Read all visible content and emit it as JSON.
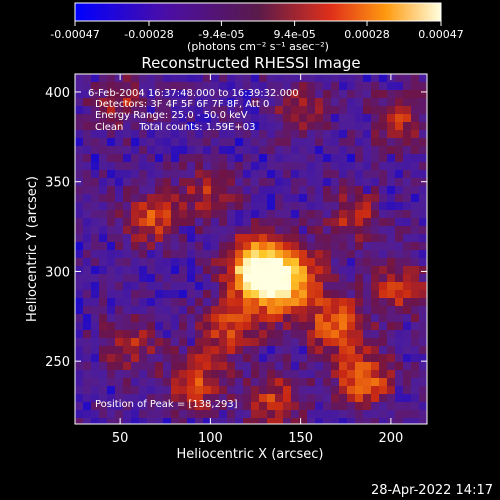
{
  "chart_data": {
    "type": "heatmap",
    "title": "Reconstructed RHESSI Image",
    "xlabel": "Heliocentric X (arcsec)",
    "ylabel": "Heliocentric Y (arcsec)",
    "xlim": [
      25,
      220
    ],
    "ylim": [
      215,
      410
    ],
    "xticks": [
      "50",
      "100",
      "150",
      "200"
    ],
    "yticks": [
      "250",
      "300",
      "350",
      "400"
    ],
    "colorbar": {
      "ticks": [
        "-0.00047",
        "-0.00028",
        "-9.4e-05",
        "9.4e-05",
        "0.00028",
        "0.00047"
      ],
      "unit_label": "(photons cm⁻² s⁻¹ asec⁻²)",
      "range": [
        -0.00047,
        0.00047
      ]
    },
    "annotations": [
      "6-Feb-2004 16:37:48.000 to 16:39:32.000",
      "Detectors: 3F 4F 5F 6F 7F 8F, Att 0",
      "Energy Range: 25.0 - 50.0 keV",
      "Clean     Total counts: 1.59E+03"
    ],
    "peak_label": "Position of Peak = [138,293]",
    "peak": [
      138,
      293
    ],
    "sources": [
      {
        "x": 138,
        "y": 296,
        "amp": 1.0
      },
      {
        "x": 122,
        "y": 303,
        "amp": 0.55
      },
      {
        "x": 170,
        "y": 270,
        "amp": 0.55
      },
      {
        "x": 110,
        "y": 268,
        "amp": 0.45
      },
      {
        "x": 185,
        "y": 240,
        "amp": 0.55
      },
      {
        "x": 92,
        "y": 238,
        "amp": 0.45
      },
      {
        "x": 68,
        "y": 330,
        "amp": 0.45
      },
      {
        "x": 180,
        "y": 330,
        "amp": 0.35
      },
      {
        "x": 205,
        "y": 290,
        "amp": 0.4
      },
      {
        "x": 135,
        "y": 228,
        "amp": 0.4
      },
      {
        "x": 100,
        "y": 345,
        "amp": 0.35
      },
      {
        "x": 150,
        "y": 390,
        "amp": 0.3
      },
      {
        "x": 205,
        "y": 385,
        "amp": 0.35
      },
      {
        "x": 50,
        "y": 395,
        "amp": 0.3
      },
      {
        "x": 55,
        "y": 260,
        "amp": 0.35
      }
    ]
  },
  "footer": {
    "timestamp": "28-Apr-2022 14:17"
  }
}
